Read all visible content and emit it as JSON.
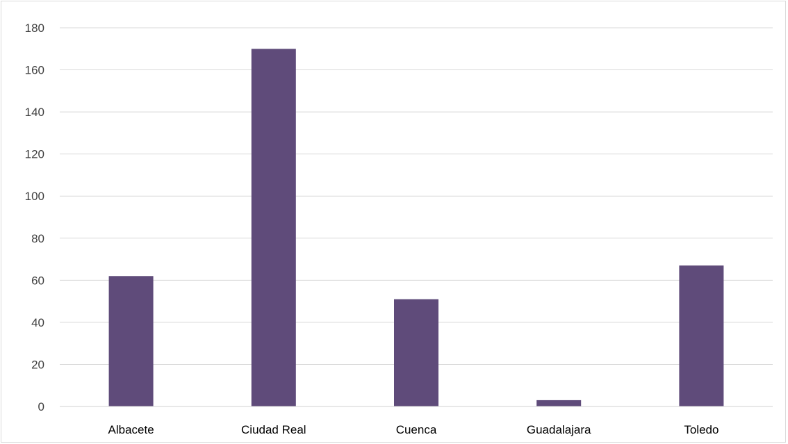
{
  "chart_data": {
    "type": "bar",
    "title": "",
    "xlabel": "",
    "ylabel": "",
    "categories": [
      "Albacete",
      "Ciudad Real",
      "Cuenca",
      "Guadalajara",
      "Toledo"
    ],
    "values": [
      62,
      170,
      51,
      3,
      67
    ],
    "ylim": [
      0,
      180
    ],
    "yticks": [
      0,
      20,
      40,
      60,
      80,
      100,
      120,
      140,
      160,
      180
    ],
    "grid": true,
    "legend": "none",
    "bar_color": "#5f4b7a",
    "gridline_color": "#d9d9d9"
  }
}
